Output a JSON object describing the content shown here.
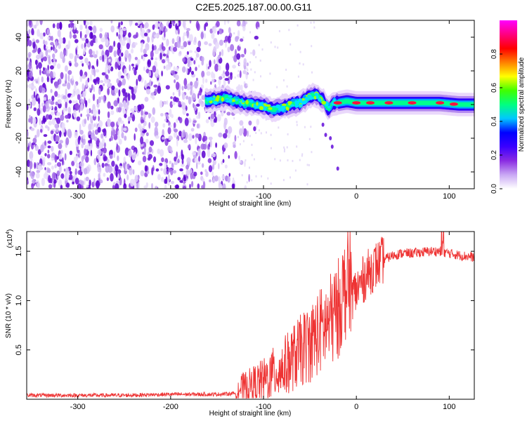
{
  "figure": {
    "title": "C2E5.2025.187.00.00.G11"
  },
  "chart_data": [
    {
      "type": "heatmap",
      "xlabel": "Height of straight line (km)",
      "ylabel": "Frequency (Hz)",
      "xlim": [
        -355,
        127
      ],
      "ylim": [
        -50,
        50
      ],
      "xticks": [
        -300,
        -200,
        -100,
        0,
        100
      ],
      "xtick_labels": [
        "-300",
        "-200",
        "-100",
        "0",
        "100"
      ],
      "yticks": [
        40,
        20,
        0,
        -20,
        -40
      ],
      "ytick_labels": [
        "40",
        "20",
        "0",
        "-20",
        "-40"
      ],
      "colorbar": {
        "label": "Normalized spectral amplitude",
        "range": [
          0,
          1
        ],
        "ticks": [
          0.0,
          0.2,
          0.4,
          0.6,
          0.8
        ],
        "tick_labels": [
          "0.0",
          "0.2",
          "0.4",
          "0.6",
          "0.8"
        ],
        "colors": [
          "#ffffff",
          "#c9a8f4",
          "#8a2be2",
          "#3a00ff",
          "#0000ff",
          "#00c8ff",
          "#00ff80",
          "#40ff00",
          "#ffff00",
          "#ff8000",
          "#ff0000",
          "#ff0080",
          "#ff00ff"
        ]
      },
      "noise_region_x": [
        -355,
        -135
      ],
      "signal_track": {
        "x": [
          -163,
          -150,
          -140,
          -130,
          -120,
          -110,
          -100,
          -90,
          -80,
          -70,
          -60,
          -50,
          -45,
          -40,
          -35,
          -30,
          -25,
          -20,
          -10,
          0,
          10,
          30,
          60,
          90,
          110,
          127
        ],
        "y": [
          2,
          3,
          4,
          2,
          1,
          0,
          -1,
          -3,
          -2,
          0,
          1,
          5,
          6,
          4,
          2,
          -3,
          1,
          1,
          2,
          1,
          1,
          1,
          1,
          1,
          0,
          0
        ],
        "hotspots_x": [
          -20,
          0,
          15,
          35,
          60,
          90,
          105
        ]
      }
    },
    {
      "type": "line",
      "xlabel": "Height of straight line (km)",
      "ylabel": "SNR (10 * v/v)",
      "y_exponent_label": "(x10",
      "y_exponent_power": "4",
      "xlim": [
        -355,
        127
      ],
      "ylim": [
        0,
        1.7
      ],
      "xticks": [
        -300,
        -200,
        -100,
        0,
        100
      ],
      "xtick_labels": [
        "-300",
        "-200",
        "-100",
        "0",
        "100"
      ],
      "yticks": [
        0.5,
        1.0,
        1.5
      ],
      "ytick_labels": [
        "0.5",
        "1.0",
        "1.5"
      ],
      "color": "#ee3333",
      "series": [
        {
          "x": [
            -355,
            -300,
            -250,
            -200,
            -150,
            -130,
            -110,
            -100,
            -90,
            -80,
            -70,
            -60,
            -50,
            -40,
            -30,
            -20,
            -15,
            -10,
            -5,
            0,
            10,
            20,
            30,
            40,
            50,
            60,
            70,
            80,
            90,
            100,
            110,
            127
          ],
          "y": [
            0.04,
            0.04,
            0.04,
            0.05,
            0.05,
            0.06,
            0.1,
            0.12,
            0.18,
            0.22,
            0.3,
            0.38,
            0.45,
            0.55,
            0.62,
            0.75,
            0.9,
            1.0,
            1.05,
            1.1,
            1.25,
            1.35,
            1.42,
            1.46,
            1.48,
            1.48,
            1.49,
            1.5,
            1.5,
            1.48,
            1.46,
            1.44
          ]
        }
      ]
    }
  ]
}
